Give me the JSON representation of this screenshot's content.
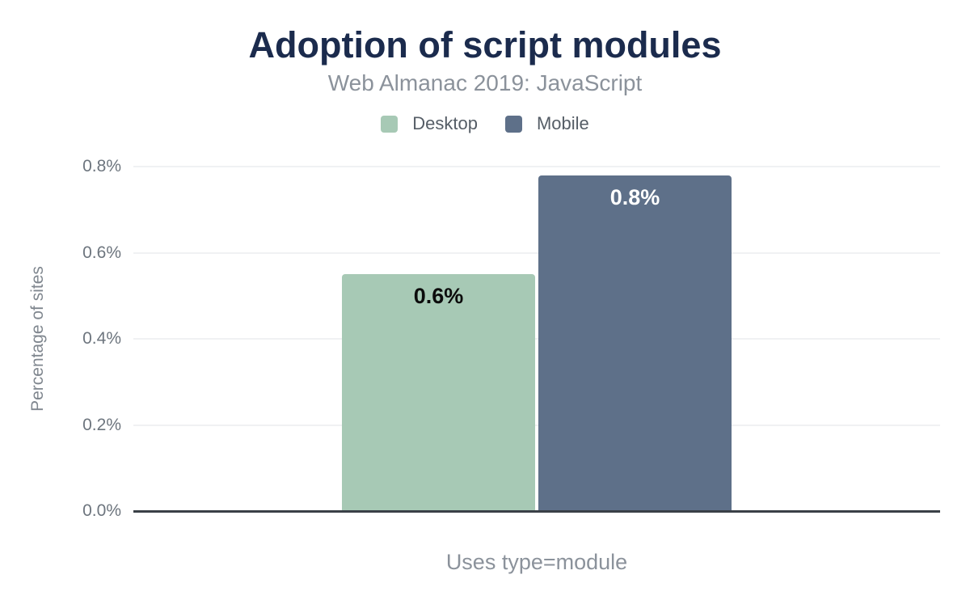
{
  "chart_data": {
    "type": "bar",
    "title": "Adoption of script modules",
    "subtitle": "Web Almanac 2019: JavaScript",
    "xlabel": "Uses type=module",
    "ylabel": "Percentage of sites",
    "categories": [
      "Uses type=module"
    ],
    "series": [
      {
        "name": "Desktop",
        "color": "#a7c9b5",
        "values": [
          0.55
        ],
        "data_labels": [
          "0.6%"
        ],
        "label_color": "#0c0c0c"
      },
      {
        "name": "Mobile",
        "color": "#5e7089",
        "values": [
          0.78
        ],
        "data_labels": [
          "0.8%"
        ],
        "label_color": "#ffffff"
      }
    ],
    "ylim": [
      0,
      0.8
    ],
    "yticks": [
      {
        "label": "0.0%",
        "value": 0.0
      },
      {
        "label": "0.2%",
        "value": 0.2
      },
      {
        "label": "0.4%",
        "value": 0.4
      },
      {
        "label": "0.6%",
        "value": 0.6
      },
      {
        "label": "0.8%",
        "value": 0.8
      }
    ],
    "grid": true,
    "legend_position": "top"
  },
  "colors": {
    "title": "#1b2b4d",
    "subtitle": "#8b929b",
    "legend_text": "#555d66",
    "tick_text": "#6d757e",
    "gridline": "#f0f1f3",
    "axis_line": "#3a4047",
    "background": "#ffffff"
  }
}
